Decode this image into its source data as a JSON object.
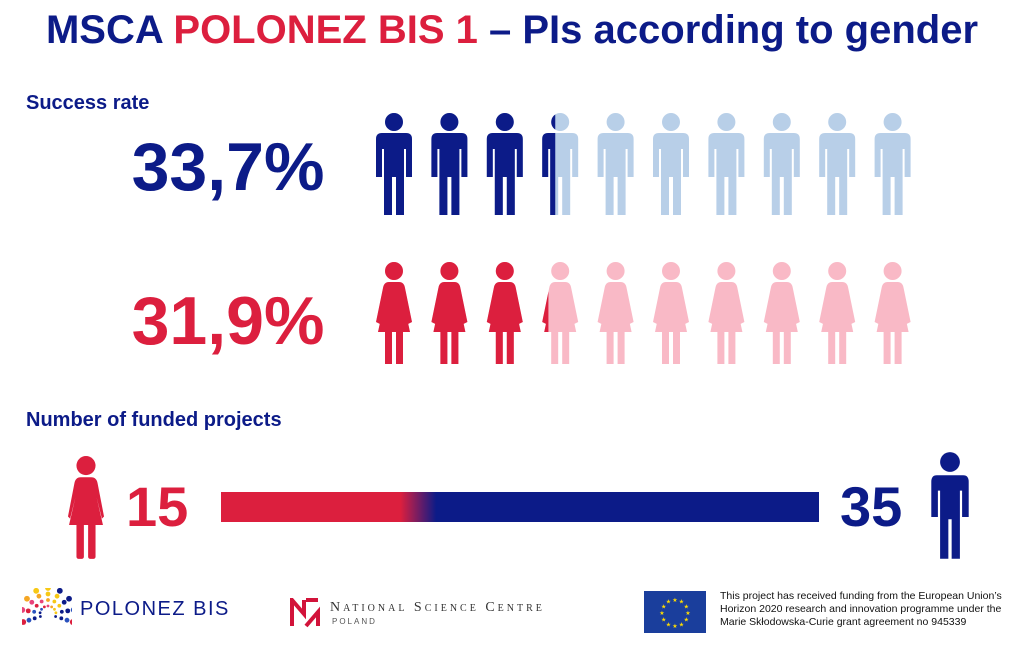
{
  "title": {
    "part1": "MSCA ",
    "part2": "POLONEZ BIS 1",
    "part3": " – PIs according to gender"
  },
  "colors": {
    "navy": "#0c1b88",
    "red": "#dc1f3e",
    "light_blue": "#b8cfe8",
    "light_pink": "#f9b9c6"
  },
  "success_rate": {
    "label": "Success rate",
    "men": {
      "value_text": "33,7%",
      "value": 33.7,
      "icon": "male-figure-icon"
    },
    "women": {
      "value_text": "31,9%",
      "value": 31.9,
      "icon": "female-figure-icon"
    }
  },
  "funded": {
    "label": "Number of funded projects",
    "women": {
      "count_text": "15",
      "count": 15,
      "icon": "female-figure-icon"
    },
    "men": {
      "count_text": "35",
      "count": 35,
      "icon": "male-figure-icon"
    }
  },
  "chart_data": {
    "type": "bar",
    "title": "MSCA POLONEZ BIS 1 – PIs according to gender",
    "success_rate": {
      "categories": [
        "Men",
        "Women"
      ],
      "values": [
        33.7,
        31.9
      ],
      "unit": "%",
      "icons_per_row": 10
    },
    "funded_projects": {
      "categories": [
        "Women",
        "Men"
      ],
      "values": [
        15,
        35
      ]
    }
  },
  "footer": {
    "polonez_logo": "POLONEZ BIS",
    "ncn_name": "National Science Centre",
    "ncn_country": "POLAND",
    "funding_text": "This project has received funding from the European Union’s Horizon 2020 research and innovation programme under the Marie Skłodowska-Curie grant agreement no 945339",
    "eu_flag_icon": "eu-flag-icon"
  }
}
